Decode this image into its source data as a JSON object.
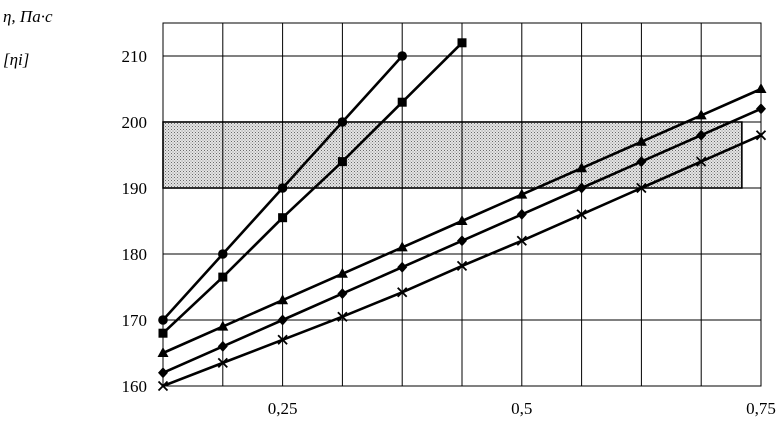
{
  "chart_data": {
    "type": "line",
    "title": "",
    "ylabel": "η,   Па·с",
    "ylabel_sub": "[ηi]",
    "xlabel": "",
    "xlim": [
      0.125,
      0.75
    ],
    "ylim": [
      160,
      215
    ],
    "x_ticks": [
      {
        "value": 0.25,
        "label": "0,25"
      },
      {
        "value": 0.5,
        "label": "0,5"
      },
      {
        "value": 0.75,
        "label": "0,75"
      }
    ],
    "y_ticks": [
      {
        "value": 160,
        "label": "160"
      },
      {
        "value": 170,
        "label": "170"
      },
      {
        "value": 180,
        "label": "180"
      },
      {
        "value": 190,
        "label": "190"
      },
      {
        "value": 200,
        "label": "200"
      },
      {
        "value": 210,
        "label": "210"
      }
    ],
    "grid": true,
    "grid_x_step": 0.0625,
    "grid_y_step": 10,
    "highlight_band": {
      "x": [
        0.125,
        0.73
      ],
      "y": [
        190,
        200
      ],
      "fill": "hatched"
    },
    "series": [
      {
        "marker": "circle",
        "x": [
          0.125,
          0.1875,
          0.25,
          0.3125,
          0.375
        ],
        "y": [
          170,
          180,
          190,
          200,
          210
        ]
      },
      {
        "marker": "square",
        "x": [
          0.125,
          0.1875,
          0.25,
          0.3125,
          0.375,
          0.4375
        ],
        "y": [
          168,
          176.5,
          185.5,
          194,
          203,
          212
        ]
      },
      {
        "marker": "triangle",
        "x": [
          0.125,
          0.1875,
          0.25,
          0.3125,
          0.375,
          0.4375,
          0.5,
          0.5625,
          0.625,
          0.6875,
          0.75
        ],
        "y": [
          165,
          169,
          173,
          177,
          181,
          185,
          189,
          193,
          197,
          201,
          205
        ]
      },
      {
        "marker": "diamond",
        "x": [
          0.125,
          0.1875,
          0.25,
          0.3125,
          0.375,
          0.4375,
          0.5,
          0.5625,
          0.625,
          0.6875,
          0.75
        ],
        "y": [
          162,
          166,
          170,
          174,
          178,
          182,
          186,
          190,
          194,
          198,
          202
        ]
      },
      {
        "marker": "cross",
        "x": [
          0.125,
          0.1875,
          0.25,
          0.3125,
          0.375,
          0.4375,
          0.5,
          0.5625,
          0.625,
          0.6875,
          0.75
        ],
        "y": [
          160,
          163.5,
          167,
          170.5,
          174.2,
          178.2,
          182,
          186,
          190,
          194,
          198
        ]
      }
    ]
  }
}
